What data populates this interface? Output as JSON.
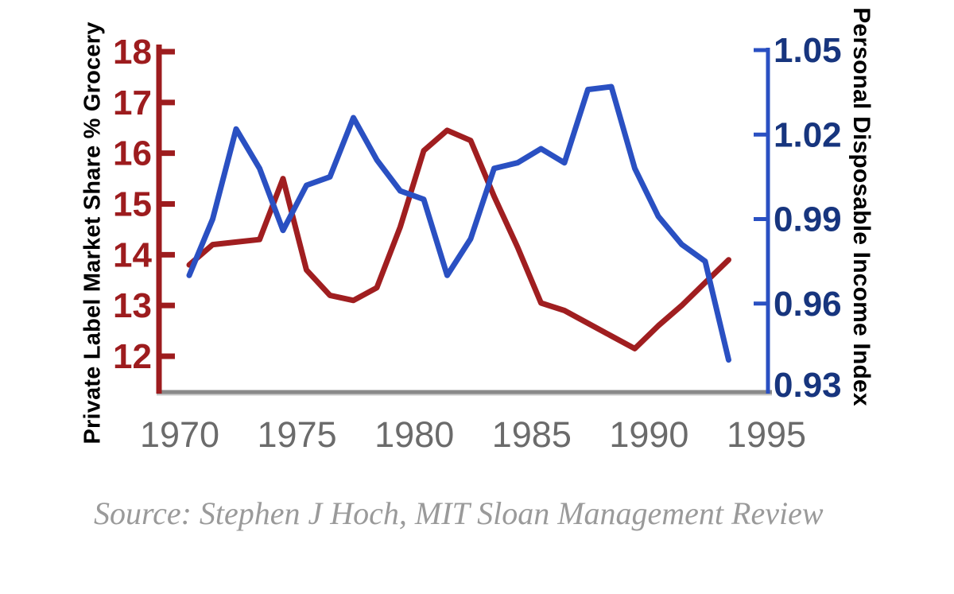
{
  "chart": {
    "left_axis": {
      "title": "Private Label Market Share % Grocery",
      "tick_labels": [
        "18",
        "17",
        "16",
        "15",
        "14",
        "13",
        "12"
      ],
      "ticks": [
        18,
        17,
        16,
        15,
        14,
        13,
        12
      ],
      "color": "#9d1c1e",
      "label_color": "#9d1c1e"
    },
    "right_axis": {
      "title": "Personal Disposable Income Index",
      "tick_labels": [
        "1.05",
        "1.02",
        "0.99",
        "0.96",
        "0.93"
      ],
      "ticks": [
        1.05,
        1.02,
        0.99,
        0.96,
        0.93
      ],
      "color": "#2a50c2",
      "label_color": "#17357e"
    },
    "x_axis": {
      "tick_labels": [
        "1970",
        "1975",
        "1980",
        "1985",
        "1990",
        "1995"
      ],
      "ticks": [
        1970,
        1975,
        1980,
        1985,
        1990,
        1995
      ],
      "line_color": "#8a8a8a",
      "label_color": "#6b6b6b"
    }
  },
  "chart_data": {
    "type": "line",
    "title": "",
    "x": [
      1971,
      1972,
      1973,
      1974,
      1975,
      1976,
      1977,
      1978,
      1979,
      1980,
      1981,
      1982,
      1983,
      1984,
      1985,
      1986,
      1987,
      1988,
      1989,
      1990,
      1991,
      1992,
      1993,
      1994
    ],
    "series": [
      {
        "name": "Private Label Market Share % Grocery",
        "axis": "left",
        "color": "#a01e20",
        "values": [
          13.8,
          14.2,
          14.25,
          14.3,
          15.5,
          13.7,
          13.2,
          13.1,
          13.35,
          14.55,
          16.05,
          16.45,
          16.25,
          15.15,
          14.15,
          13.05,
          12.9,
          12.65,
          12.4,
          12.15,
          12.6,
          13.0,
          13.45,
          13.9
        ]
      },
      {
        "name": "Personal Disposable Income Index",
        "axis": "right",
        "color": "#2a50c2",
        "values": [
          0.97,
          0.99,
          1.022,
          1.008,
          0.986,
          1.002,
          1.005,
          1.026,
          1.011,
          1.0,
          0.997,
          0.97,
          0.983,
          1.008,
          1.01,
          1.015,
          1.01,
          1.036,
          1.037,
          1.008,
          0.991,
          0.981,
          0.975,
          0.94
        ]
      }
    ],
    "left_ylim": [
      12,
      18
    ],
    "right_ylim": [
      0.93,
      1.05
    ],
    "x_label_range": [
      1970,
      1995
    ],
    "grid": false,
    "legend": "none"
  },
  "source_note": "Source: Stephen J Hoch, MIT Sloan Management Review"
}
